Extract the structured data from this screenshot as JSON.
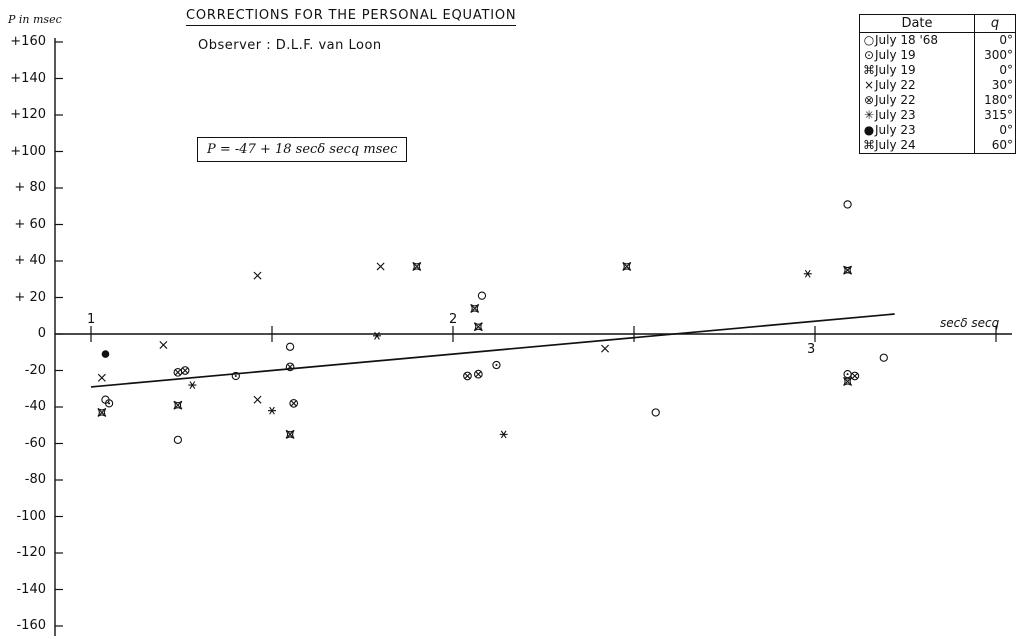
{
  "title": "CORRECTIONS FOR THE PERSONAL EQUATION",
  "observer": "Observer    : D.L.F. van Loon",
  "ylabel": "P in msec",
  "xlabel": "secδ secq",
  "formula": "P = -47 + 18 secδ secq  msec",
  "legend": {
    "header_date": "Date",
    "header_q": "q",
    "rows": [
      {
        "symbol": "circle",
        "date": "July 18 '68",
        "q": "0°"
      },
      {
        "symbol": "dot-circle",
        "date": "July 19",
        "q": "300°"
      },
      {
        "symbol": "star-box",
        "date": "July 19",
        "q": "0°"
      },
      {
        "symbol": "cross",
        "date": "July 22",
        "q": "30°"
      },
      {
        "symbol": "x-circle",
        "date": "July 22",
        "q": "180°"
      },
      {
        "symbol": "asterisk",
        "date": "July 23",
        "q": "315°"
      },
      {
        "symbol": "filled-circle",
        "date": "July 23",
        "q": "0°"
      },
      {
        "symbol": "star-box",
        "date": "July 24",
        "q": "60°"
      }
    ]
  },
  "chart_data": {
    "type": "scatter",
    "title": "CORRECTIONS FOR THE PERSONAL EQUATION",
    "xlabel": "secδ secq",
    "ylabel": "P in msec",
    "xlim": [
      0.95,
      3.55
    ],
    "ylim": [
      -160,
      160
    ],
    "xticks": [
      1,
      1.5,
      2,
      2.5,
      3,
      3.5
    ],
    "xtick_labels": [
      "1",
      "",
      "2",
      "",
      "3",
      ""
    ],
    "yticks": [
      160,
      140,
      120,
      100,
      80,
      60,
      40,
      20,
      0,
      -20,
      -40,
      -60,
      -80,
      -100,
      -120,
      -140,
      -160
    ],
    "ytick_labels": [
      "+160",
      "+140",
      "+120",
      "+100",
      "+ 80",
      "+ 60",
      "+ 40",
      "+ 20",
      "0",
      "-20",
      "-40",
      "-60",
      "-80",
      "-100",
      "-120",
      "-140",
      "-160"
    ],
    "fit_line": {
      "intercept": -47,
      "slope": 18,
      "x_range": [
        1.0,
        3.22
      ]
    },
    "series": [
      {
        "date": "July 18 '68",
        "q": "0°",
        "symbol": "circle",
        "points": [
          [
            1.04,
            -36
          ],
          [
            1.24,
            -58
          ],
          [
            1.55,
            -7
          ],
          [
            2.08,
            21
          ],
          [
            2.56,
            -43
          ],
          [
            3.09,
            71
          ],
          [
            3.19,
            -13
          ]
        ]
      },
      {
        "date": "July 19",
        "q": "300°",
        "symbol": "dot-circle",
        "points": [
          [
            1.05,
            -38
          ],
          [
            1.4,
            -23
          ],
          [
            2.12,
            -17
          ],
          [
            3.09,
            -22
          ]
        ]
      },
      {
        "date": "July 19",
        "q": "0°",
        "symbol": "star-box",
        "points": [
          [
            1.03,
            -43
          ],
          [
            1.24,
            -39
          ],
          [
            1.55,
            -55
          ],
          [
            1.9,
            37
          ],
          [
            2.06,
            14
          ],
          [
            2.07,
            4
          ],
          [
            2.48,
            37
          ]
        ]
      },
      {
        "date": "July 22",
        "q": "30°",
        "symbol": "cross",
        "points": [
          [
            1.03,
            -24
          ],
          [
            1.2,
            -6
          ],
          [
            1.46,
            32
          ],
          [
            1.46,
            -36
          ],
          [
            1.8,
            37
          ],
          [
            2.42,
            -8
          ]
        ]
      },
      {
        "date": "July 22",
        "q": "180°",
        "symbol": "x-circle",
        "points": [
          [
            1.24,
            -21
          ],
          [
            1.26,
            -20
          ],
          [
            1.55,
            -18
          ],
          [
            1.56,
            -38
          ],
          [
            2.04,
            -23
          ],
          [
            2.07,
            -22
          ],
          [
            3.11,
            -23
          ]
        ]
      },
      {
        "date": "July 23",
        "q": "315°",
        "symbol": "asterisk",
        "points": [
          [
            1.28,
            -28
          ],
          [
            1.5,
            -42
          ],
          [
            1.79,
            -1
          ],
          [
            2.14,
            -55
          ],
          [
            2.98,
            33
          ]
        ]
      },
      {
        "date": "July 23",
        "q": "0°",
        "symbol": "filled-circle",
        "points": [
          [
            1.04,
            -11
          ]
        ]
      },
      {
        "date": "July 24",
        "q": "60°",
        "symbol": "star-box",
        "points": [
          [
            3.09,
            -26
          ],
          [
            3.09,
            35
          ]
        ]
      }
    ]
  }
}
